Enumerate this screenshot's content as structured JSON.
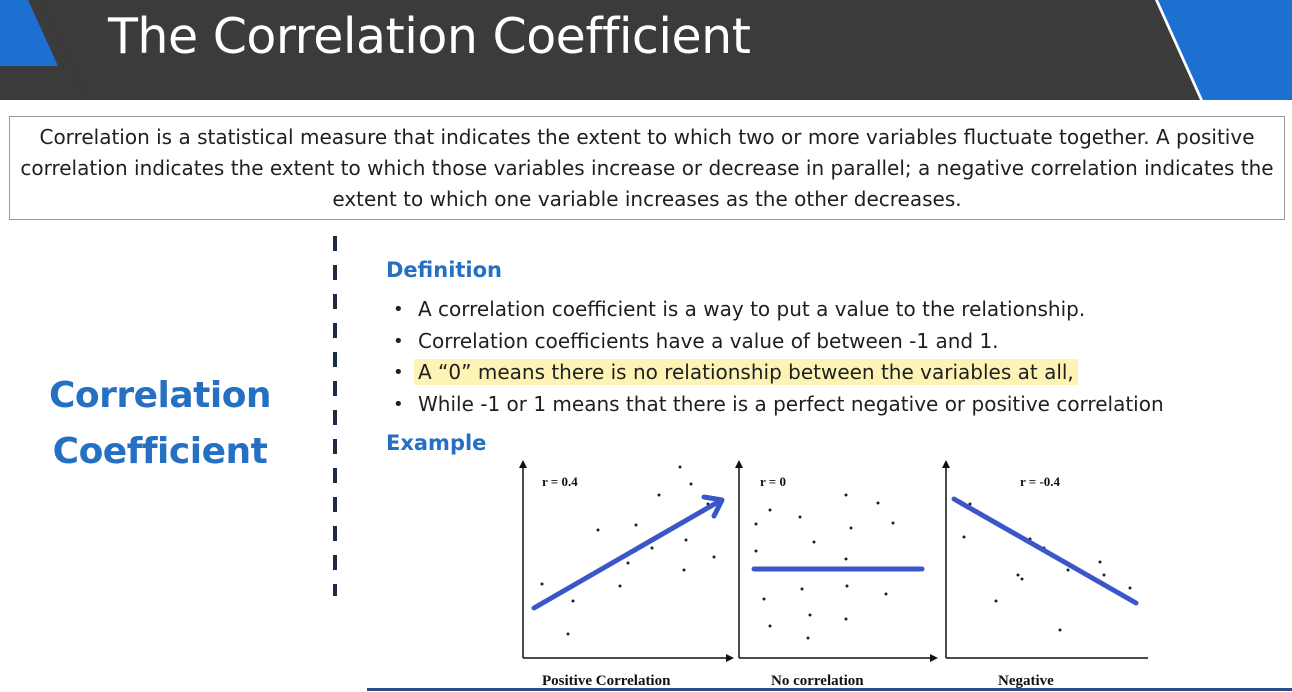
{
  "header": {
    "title": "The Correlation Coefficient",
    "colors": {
      "band": "#3b3b3b",
      "accent": "#1e6fd2"
    }
  },
  "intro": {
    "text": "Correlation is a statistical measure that indicates the extent to which two or more variables fluctuate together. A positive correlation indicates the extent to which those variables increase or decrease in parallel; a negative correlation indicates the extent to which one variable increases as the other decreases."
  },
  "side": {
    "line1": "Correlation",
    "line2": "Coefficient",
    "color": "#2570c2"
  },
  "definition": {
    "heading": "Definition",
    "bullets": [
      "A correlation coefficient is a way to put a value to the relationship.",
      "Correlation coefficients have a value of between -1 and 1.",
      "A “0” means there is no relationship between the variables at all,",
      "While -1 or 1 means that there is a perfect negative or positive correlation"
    ],
    "highlight_color": "#fdf3b4"
  },
  "example": {
    "heading": "Example",
    "panels": [
      {
        "r_label": "r = 0.4",
        "caption": "Positive Correlation"
      },
      {
        "r_label": "r = 0",
        "caption": "No correlation"
      },
      {
        "r_label": "r = -0.4",
        "caption": "Negative"
      }
    ],
    "annotation_color": "#3a56c8"
  }
}
